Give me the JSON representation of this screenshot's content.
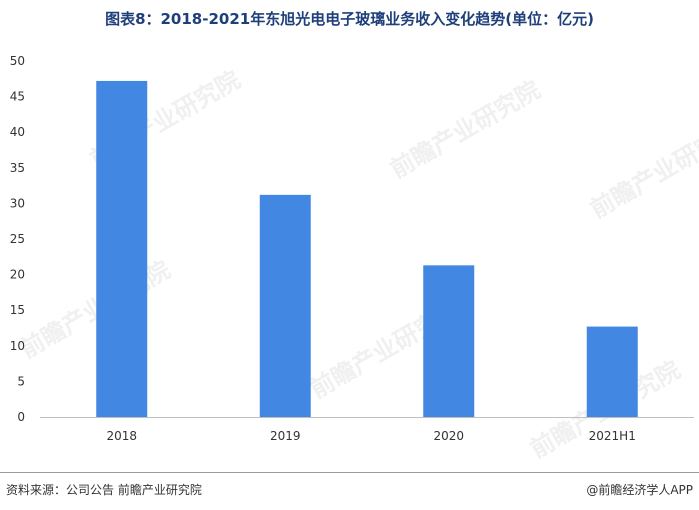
{
  "title": "图表8：2018-2021年东旭光电电子玻璃业务收入变化趋势(单位：亿元)",
  "source": "资料来源：公司公告 前瞻产业研究院",
  "brand": "@前瞻经济学人APP",
  "watermark": "前瞻产业研究院",
  "colors": {
    "bar": "#4287e2",
    "title": "#1f3f7a",
    "axis": "#333333"
  },
  "chart_data": {
    "type": "bar",
    "categories": [
      "2018",
      "2019",
      "2020",
      "2021H1"
    ],
    "values": [
      47.2,
      31.2,
      21.3,
      12.7
    ],
    "title": "图表8：2018-2021年东旭光电电子玻璃业务收入变化趋势(单位：亿元)",
    "xlabel": "",
    "ylabel": "",
    "ylim": [
      0,
      50
    ],
    "yticks": [
      0,
      5,
      10,
      15,
      20,
      25,
      30,
      35,
      40,
      45,
      50
    ],
    "grid": false,
    "legend": "none"
  }
}
